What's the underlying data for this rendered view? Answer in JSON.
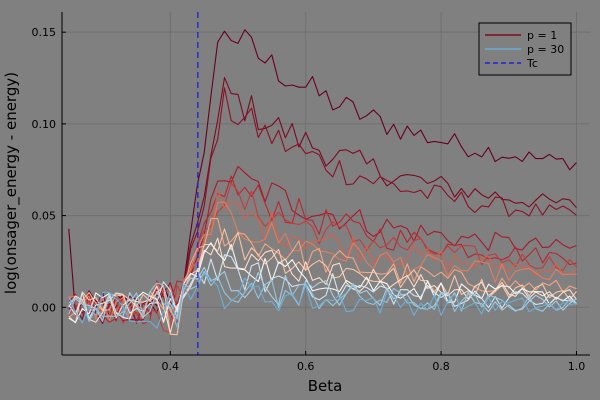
{
  "chart_data": {
    "type": "line",
    "xlabel": "Beta",
    "ylabel": "log(onsager_energy - energy)",
    "xlim": [
      0.24,
      1.02
    ],
    "ylim": [
      -0.026,
      0.161
    ],
    "x_ticks": [
      0.4,
      0.6,
      0.8,
      1.0
    ],
    "x_tick_labels": [
      "0.4",
      "0.6",
      "0.8",
      "1.0"
    ],
    "y_ticks": [
      0.0,
      0.05,
      0.1,
      0.15
    ],
    "y_tick_labels": [
      "0.00",
      "0.05",
      "0.10",
      "0.15"
    ],
    "grid": true,
    "background": "#808080",
    "legend_position": "top-right",
    "legend": [
      {
        "label": "p = 1",
        "color": "#7f0a1e",
        "style": "solid"
      },
      {
        "label": "p = 30",
        "color": "#6baed6",
        "style": "solid"
      },
      {
        "label": "Tc",
        "color": "#1f1fd6",
        "style": "dashed"
      }
    ],
    "vline": {
      "name": "Tc",
      "x": 0.4407,
      "color": "#1f1fd6"
    },
    "x_start": 0.25,
    "x_end": 1.0,
    "n_points": 76,
    "series_envelope": [
      {
        "p": 1,
        "color": "#67001f",
        "peak_x": 0.475,
        "peak": 0.155,
        "end": 0.069
      },
      {
        "p": 2,
        "color": "#7a0a22",
        "peak_x": 0.48,
        "peak": 0.118,
        "end": 0.048
      },
      {
        "p": 3,
        "color": "#8c1026",
        "peak_x": 0.48,
        "peak": 0.11,
        "end": 0.043
      },
      {
        "p": 5,
        "color": "#a51b2c",
        "peak_x": 0.478,
        "peak": 0.074,
        "end": 0.027
      },
      {
        "p": 7,
        "color": "#b8262f",
        "peak_x": 0.478,
        "peak": 0.068,
        "end": 0.022
      },
      {
        "p": 9,
        "color": "#c43c3c",
        "peak_x": 0.475,
        "peak": 0.062,
        "end": 0.019
      },
      {
        "p": 11,
        "color": "#d6604d",
        "peak_x": 0.47,
        "peak": 0.055,
        "end": 0.016
      },
      {
        "p": 13,
        "color": "#e37b5e",
        "peak_x": 0.465,
        "peak": 0.05,
        "end": 0.012
      },
      {
        "p": 15,
        "color": "#f4a582",
        "peak_x": 0.46,
        "peak": 0.045,
        "end": 0.006
      },
      {
        "p": 17,
        "color": "#f8c3a4",
        "peak_x": 0.458,
        "peak": 0.04,
        "end": 0.004
      },
      {
        "p": 19,
        "color": "#fddbc7",
        "peak_x": 0.455,
        "peak": 0.035,
        "end": 0.003
      },
      {
        "p": 21,
        "color": "#f7f7f7",
        "peak_x": 0.452,
        "peak": 0.03,
        "end": 0.002
      },
      {
        "p": 23,
        "color": "#d1e5f0",
        "peak_x": 0.45,
        "peak": 0.022,
        "end": 0.001
      },
      {
        "p": 25,
        "color": "#a6cde2",
        "peak_x": 0.45,
        "peak": 0.016,
        "end": 0.0
      },
      {
        "p": 27,
        "color": "#92c5de",
        "peak_x": 0.45,
        "peak": 0.012,
        "end": 0.0
      },
      {
        "p": 30,
        "color": "#6baed6",
        "peak_x": 0.45,
        "peak": 0.01,
        "end": -0.001
      }
    ]
  }
}
